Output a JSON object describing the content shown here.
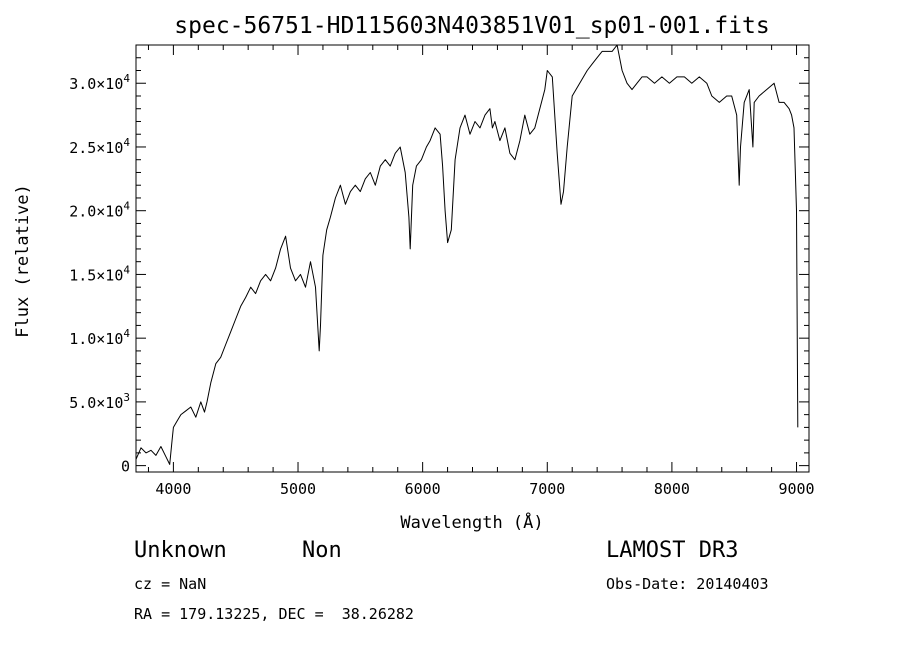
{
  "chart_data": {
    "type": "line",
    "title": "spec-56751-HD115603N403851V01_sp01-001.fits",
    "xlabel": "Wavelength (Å)",
    "ylabel": "Flux (relative)",
    "xlim": [
      3700,
      9100
    ],
    "ylim": [
      -500,
      33000
    ],
    "x_ticks": [
      4000,
      5000,
      6000,
      7000,
      8000,
      9000
    ],
    "y_ticks": [
      {
        "value": 0,
        "mant": "0",
        "exp": ""
      },
      {
        "value": 5000,
        "mant": "5.0×10",
        "exp": "3"
      },
      {
        "value": 10000,
        "mant": "1.0×10",
        "exp": "4"
      },
      {
        "value": 15000,
        "mant": "1.5×10",
        "exp": "4"
      },
      {
        "value": 20000,
        "mant": "2.0×10",
        "exp": "4"
      },
      {
        "value": 25000,
        "mant": "2.5×10",
        "exp": "4"
      },
      {
        "value": 30000,
        "mant": "3.0×10",
        "exp": "4"
      }
    ],
    "grid": false,
    "legend": "none",
    "series": [
      {
        "color": "#000000",
        "x": [
          3700,
          3740,
          3780,
          3820,
          3860,
          3900,
          3940,
          3970,
          3990,
          4000,
          4030,
          4060,
          4100,
          4140,
          4180,
          4220,
          4250,
          4270,
          4300,
          4340,
          4380,
          4420,
          4460,
          4500,
          4540,
          4580,
          4620,
          4660,
          4700,
          4740,
          4780,
          4820,
          4860,
          4900,
          4940,
          4980,
          5020,
          5060,
          5100,
          5140,
          5170,
          5180,
          5200,
          5230,
          5260,
          5300,
          5340,
          5380,
          5420,
          5460,
          5500,
          5540,
          5580,
          5620,
          5660,
          5700,
          5740,
          5780,
          5820,
          5860,
          5890,
          5900,
          5920,
          5950,
          5990,
          6030,
          6060,
          6100,
          6140,
          6160,
          6180,
          6200,
          6230,
          6260,
          6300,
          6340,
          6380,
          6420,
          6460,
          6500,
          6540,
          6560,
          6580,
          6620,
          6660,
          6700,
          6740,
          6780,
          6820,
          6860,
          6900,
          6940,
          6980,
          7000,
          7040,
          7080,
          7110,
          7130,
          7160,
          7200,
          7260,
          7320,
          7360,
          7400,
          7440,
          7480,
          7520,
          7560,
          7600,
          7640,
          7680,
          7720,
          7760,
          7800,
          7860,
          7920,
          7980,
          8040,
          8100,
          8160,
          8220,
          8280,
          8320,
          8380,
          8440,
          8480,
          8520,
          8540,
          8550,
          8580,
          8620,
          8650,
          8660,
          8700,
          8760,
          8820,
          8860,
          8900,
          8940,
          8960,
          8980,
          9000,
          9010
        ],
        "y": [
          500,
          1400,
          1000,
          1200,
          800,
          1500,
          700,
          100,
          2000,
          3000,
          3500,
          4000,
          4300,
          4600,
          3800,
          5000,
          4200,
          5000,
          6500,
          8000,
          8500,
          9500,
          10500,
          11500,
          12500,
          13200,
          14000,
          13500,
          14500,
          15000,
          14500,
          15500,
          17000,
          18000,
          15500,
          14500,
          15000,
          14000,
          16000,
          14000,
          9000,
          11000,
          16500,
          18500,
          19500,
          21000,
          22000,
          20500,
          21500,
          22000,
          21500,
          22500,
          23000,
          22000,
          23500,
          24000,
          23500,
          24500,
          25000,
          23000,
          19500,
          17000,
          22000,
          23500,
          24000,
          25000,
          25500,
          26500,
          26000,
          23500,
          20000,
          17500,
          18500,
          24000,
          26500,
          27500,
          26000,
          27000,
          26500,
          27500,
          28000,
          26500,
          27000,
          25500,
          26500,
          24500,
          24000,
          25500,
          27500,
          26000,
          26500,
          28000,
          29500,
          31000,
          30500,
          24500,
          20500,
          21500,
          25000,
          29000,
          30000,
          31000,
          31500,
          32000,
          32500,
          32500,
          32500,
          33000,
          31000,
          30000,
          29500,
          30000,
          30500,
          30500,
          30000,
          30500,
          30000,
          30500,
          30500,
          30000,
          30500,
          30000,
          29000,
          28500,
          29000,
          29000,
          27500,
          22000,
          25000,
          28500,
          29500,
          25000,
          28500,
          29000,
          29500,
          30000,
          28500,
          28500,
          28000,
          27500,
          26500,
          20000,
          3000
        ]
      }
    ]
  },
  "footer": {
    "object_class": "Unknown",
    "object_subclass": "Non",
    "survey": "LAMOST DR3",
    "cz": "cz = NaN",
    "obs_date": "Obs-Date: 20140403",
    "radec": "RA = 179.13225, DEC =  38.26282"
  }
}
